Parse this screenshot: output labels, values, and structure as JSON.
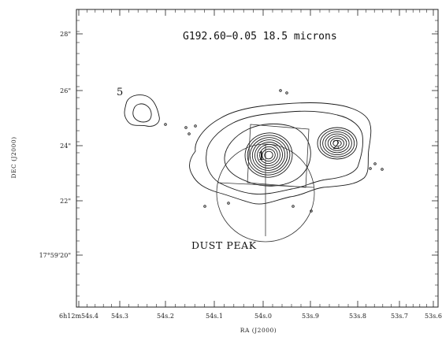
{
  "chart_data": {
    "type": "contour",
    "title": "G192.60−0.05 18.5 microns",
    "xlabel": "RA (J2000)",
    "ylabel": "DEC (J2000)",
    "x_ticks": [
      "6h12m54s.4",
      "54s.3",
      "54s.2",
      "54s.1",
      "54s.0",
      "53s.9",
      "53s.8",
      "53s.7",
      "53s.6"
    ],
    "y_ticks": [
      "17°59'20\"",
      "22\"",
      "24\"",
      "26\"",
      "28\""
    ],
    "sources": [
      {
        "label": "1",
        "ra_s": 54.02,
        "dec_arcsec": 23.6
      },
      {
        "label": "2",
        "ra_s": 53.82,
        "dec_arcsec": 24.0
      },
      {
        "label": "5",
        "ra_s": 54.29,
        "dec_arcsec": 25.7
      }
    ],
    "annotations": [
      {
        "text": "DUST PEAK",
        "ra_s": 54.09,
        "dec_arcsec": 20.2
      }
    ],
    "grid": false
  }
}
